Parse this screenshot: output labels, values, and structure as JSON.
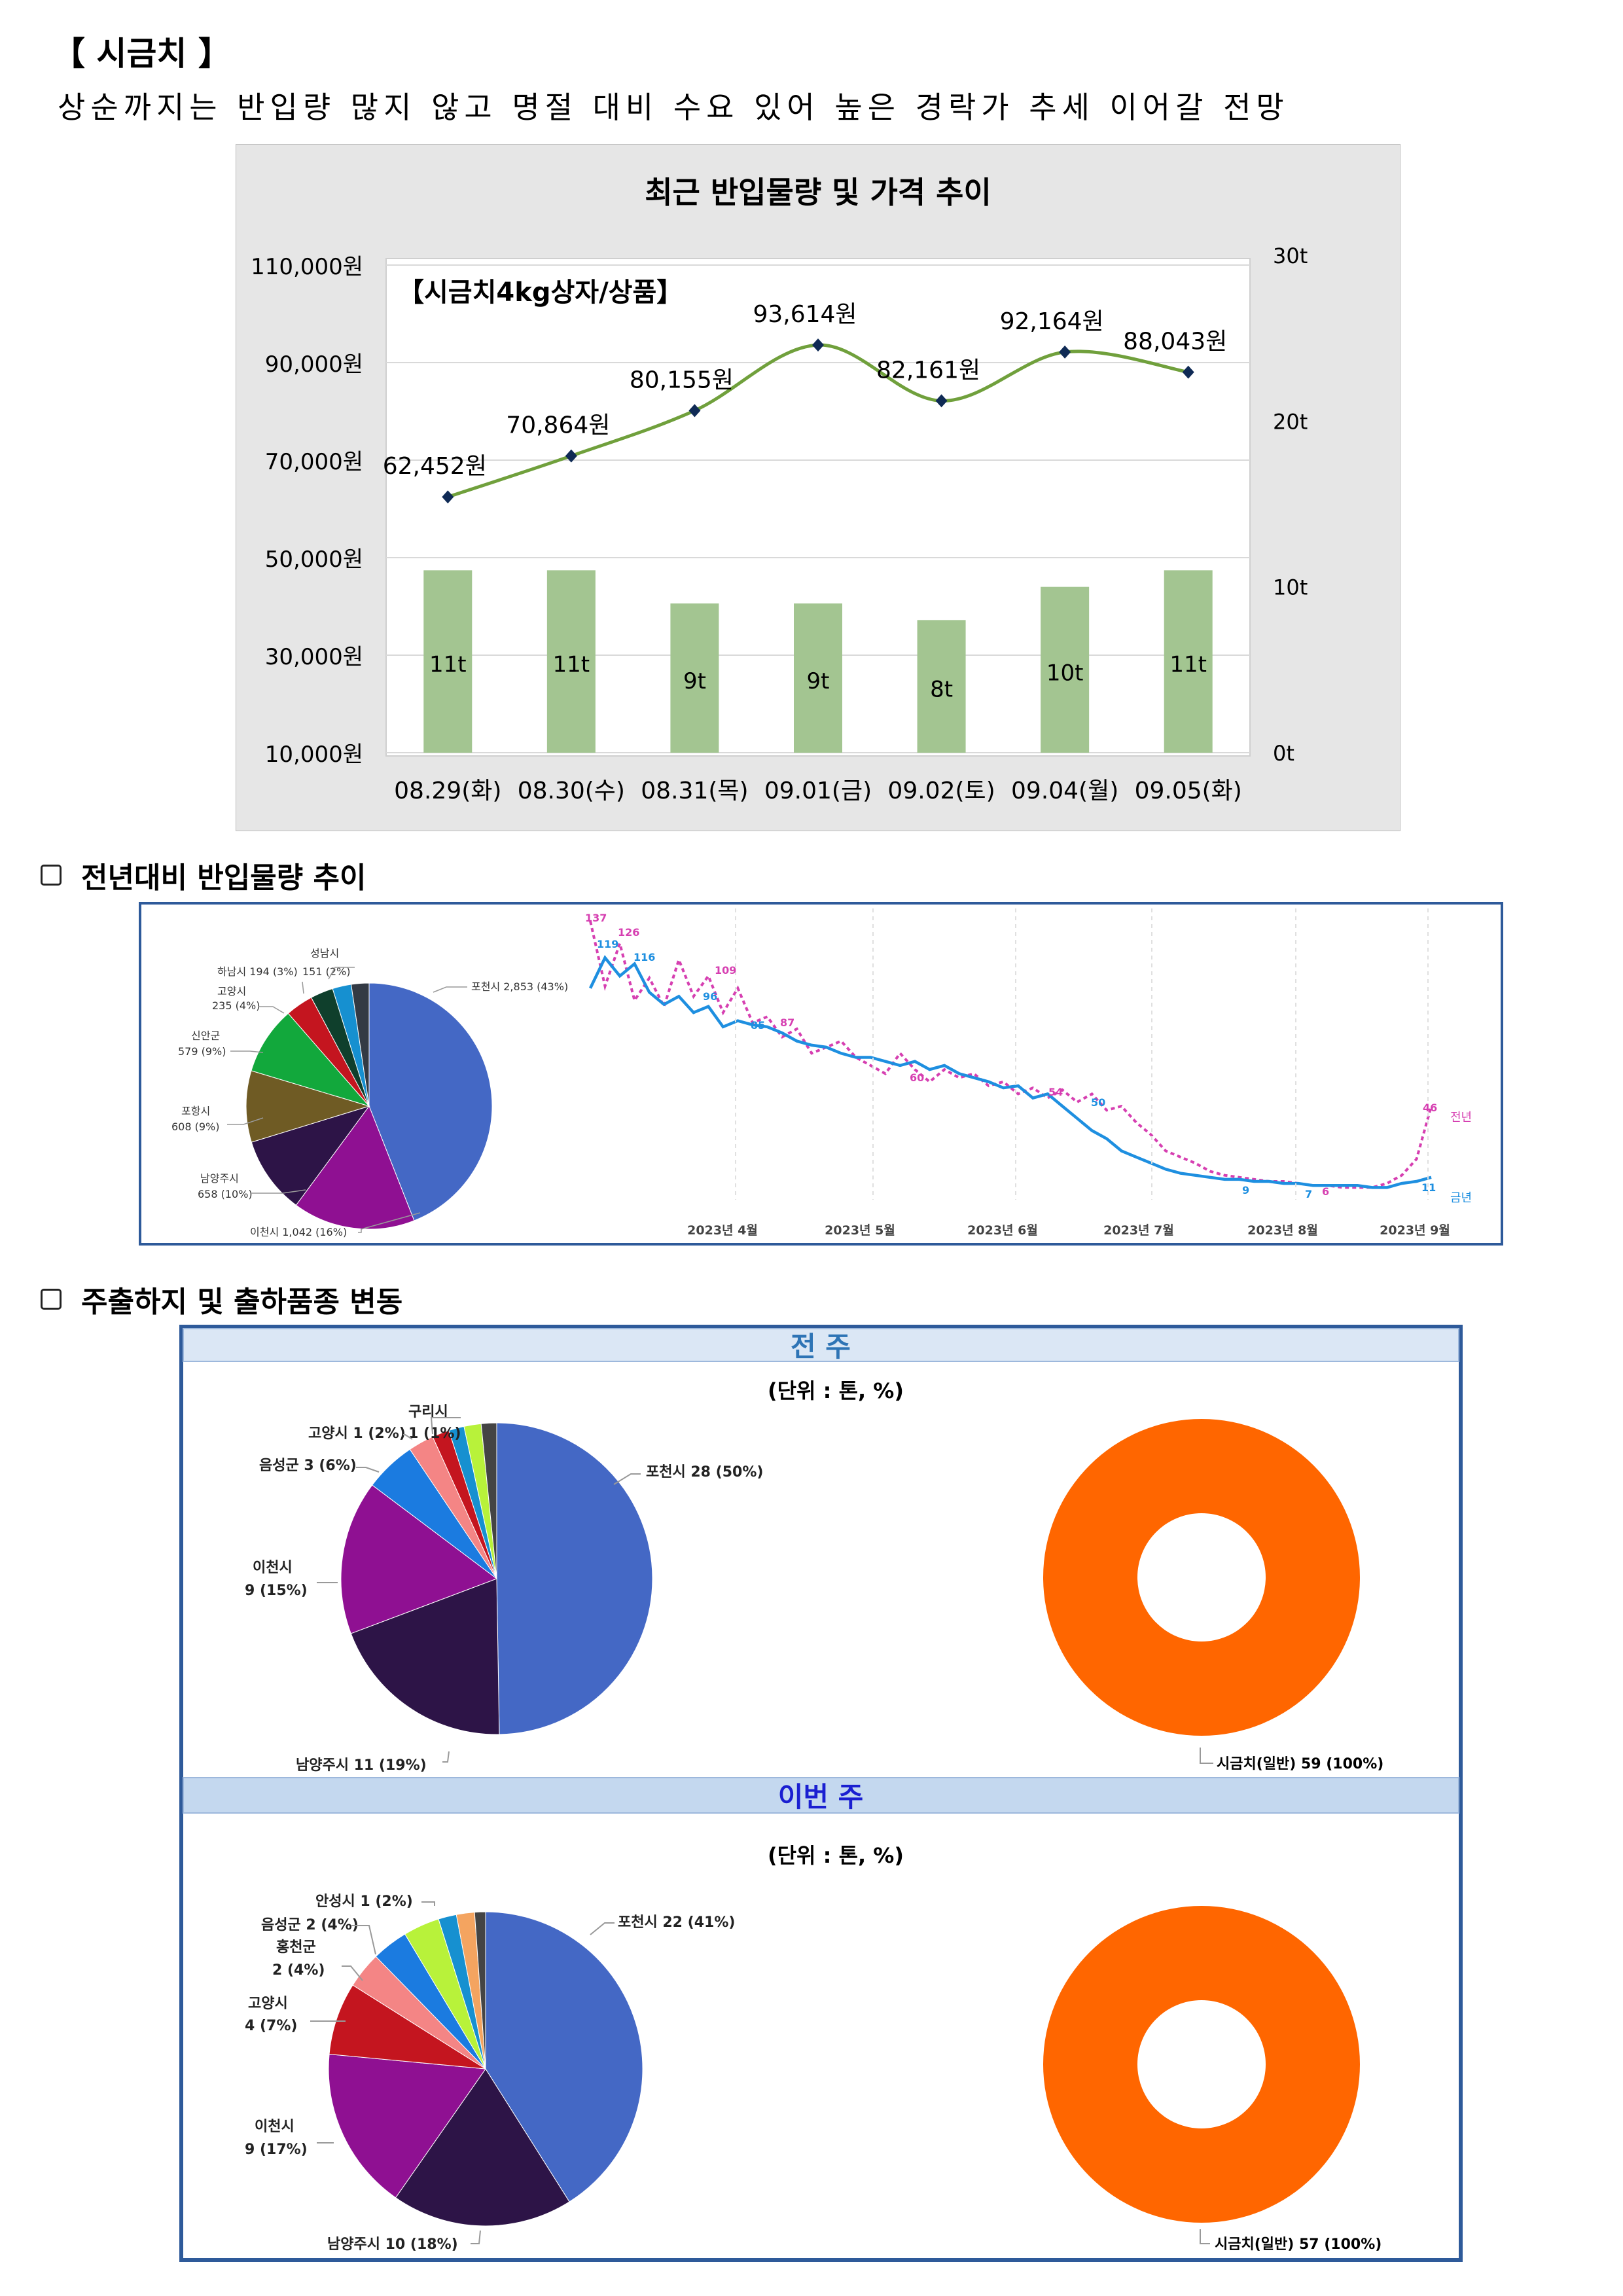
{
  "header": {
    "title": "【 시금치 】",
    "subtitle": "상순까지는 반입량 많지 않고 명절 대비 수요 있어 높은 경락가 추세 이어갈 전망"
  },
  "price_chart": {
    "title": "최근 반입물량 및 가격 추이",
    "inner_label": "【시금치4kg상자/상품】",
    "left_ticks": [
      "110,000원",
      "90,000원",
      "70,000원",
      "50,000원",
      "30,000원",
      "10,000원"
    ],
    "right_ticks": [
      "30t",
      "20t",
      "10t",
      "0t"
    ],
    "line_color": "#70a03c",
    "bar_color": "#a3c591"
  },
  "yoy_section": {
    "heading": "전년대비 반입물량 추이"
  },
  "yoy_pie_labels": [
    "포천시 2,853 (43%)",
    "이천시 1,042 (16%)",
    "남양주시",
    "658 (10%)",
    "포항시",
    "608 (9%)",
    "신안군",
    "579 (9%)",
    "고양시",
    "235 (4%)",
    "하남시 194 (3%)",
    "151 (2%)",
    "성남시"
  ],
  "yoy_line": {
    "month_labels": [
      "2023년 4월",
      "2023년 5월",
      "2023년 6월",
      "2023년 7월",
      "2023년 8월",
      "2023년 9월"
    ],
    "legend_prev": "전년",
    "legend_curr": "금년",
    "prev_color": "#d63fb1",
    "curr_color": "#1e8fe0",
    "callouts_prev": [
      "137",
      "126",
      "109",
      "87",
      "60",
      "54",
      "46",
      "6"
    ],
    "callouts_curr": [
      "119",
      "116",
      "96",
      "85",
      "50",
      "9",
      "7",
      "11"
    ]
  },
  "shipment_section": {
    "heading": "주출하지 및 출하품종 변동"
  },
  "shipment": {
    "prev_week": {
      "header": "전 주",
      "unit": "(단위 : 톤, %)",
      "labels": [
        "포천시 28 (50%)",
        "남양주시 11 (19%)",
        "이천시",
        "9 (15%)",
        "음성군 3 (6%)",
        "고양시 1 (2%)",
        "구리시",
        "1 (1%)"
      ],
      "donut_label": "시금치(일반) 59 (100%)"
    },
    "this_week": {
      "header": "이번 주",
      "unit": "(단위 : 톤, %)",
      "labels": [
        "포천시 22 (41%)",
        "남양주시 10 (18%)",
        "이천시",
        "9 (17%)",
        "고양시",
        "4 (7%)",
        "홍천군",
        "2 (4%)",
        "음성군 2 (4%)",
        "안성시 1 (2%)"
      ],
      "donut_label": "시금치(일반) 57 (100%)"
    },
    "donut_color": "#ff6600"
  },
  "chart_data": [
    {
      "type": "bar+line",
      "title": "최근 반입물량 및 가격 추이",
      "categories": [
        "08.29(화)",
        "08.30(수)",
        "08.31(목)",
        "09.01(금)",
        "09.02(토)",
        "09.04(월)",
        "09.05(화)"
      ],
      "series": [
        {
          "axis": "left",
          "type": "line",
          "values": [
            62452,
            70864,
            80155,
            93614,
            82161,
            92164,
            88043
          ],
          "value_labels": [
            "62,452원",
            "70,864원",
            "80,155원",
            "93,614원",
            "82,161원",
            "92,164원",
            "88,043원"
          ]
        },
        {
          "axis": "right",
          "type": "bar",
          "values": [
            11,
            11,
            9,
            9,
            8,
            10,
            11
          ],
          "value_labels": [
            "11t",
            "11t",
            "9t",
            "9t",
            "8t",
            "10t",
            "11t"
          ]
        }
      ],
      "ylim_left": [
        10000,
        110000
      ],
      "ylim_right": [
        0,
        30
      ]
    },
    {
      "type": "pie",
      "slices": [
        {
          "label": "포천시",
          "value": 2853,
          "pct": 43,
          "color": "#4468c5"
        },
        {
          "label": "이천시",
          "value": 1042,
          "pct": 16,
          "color": "#8f1092"
        },
        {
          "label": "남양주시",
          "value": 658,
          "pct": 10,
          "color": "#2d1447"
        },
        {
          "label": "포항시",
          "value": 608,
          "pct": 9,
          "color": "#6f5b24"
        },
        {
          "label": "신안군",
          "value": 579,
          "pct": 9,
          "color": "#12a83c"
        },
        {
          "label": "고양시",
          "value": 235,
          "pct": 4,
          "color": "#c4151f"
        },
        {
          "label": "하남시",
          "value": 194,
          "pct": 3,
          "color": "#0f3f2c"
        },
        {
          "label": "",
          "value": 160,
          "pct": 3,
          "color": "#1690d0"
        },
        {
          "label": "성남시",
          "value": 151,
          "pct": 2,
          "color": "#333a44"
        }
      ]
    },
    {
      "type": "line",
      "series": [
        {
          "name": "전년",
          "values": [
            137,
            105,
            126,
            98,
            109,
            95,
            118,
            100,
            110,
            92,
            104,
            87,
            90,
            80,
            84,
            72,
            75,
            78,
            70,
            66,
            62,
            72,
            64,
            58,
            64,
            60,
            62,
            56,
            58,
            52,
            55,
            50,
            54,
            48,
            52,
            44,
            46,
            38,
            32,
            24,
            21,
            18,
            14,
            12,
            11,
            10,
            9,
            9,
            8,
            7,
            7,
            6,
            6,
            6,
            8,
            12,
            20,
            46
          ]
        },
        {
          "name": "금년",
          "values": [
            104,
            119,
            110,
            116,
            102,
            96,
            100,
            92,
            95,
            85,
            88,
            86,
            85,
            82,
            78,
            76,
            75,
            72,
            70,
            70,
            68,
            66,
            68,
            64,
            66,
            62,
            60,
            58,
            55,
            56,
            50,
            52,
            46,
            40,
            34,
            30,
            24,
            21,
            18,
            15,
            13,
            12,
            11,
            10,
            10,
            9,
            9,
            8,
            8,
            7,
            7,
            7,
            7,
            6,
            6,
            8,
            9,
            11
          ]
        }
      ]
    },
    {
      "type": "pie",
      "title": "전 주",
      "slices": [
        {
          "label": "포천시",
          "value": 28,
          "pct": 50,
          "color": "#4468c5"
        },
        {
          "label": "남양주시",
          "value": 11,
          "pct": 19,
          "color": "#2d1447"
        },
        {
          "label": "이천시",
          "value": 9,
          "pct": 15,
          "color": "#8f1092"
        },
        {
          "label": "음성군",
          "value": 3,
          "pct": 6,
          "color": "#1b7be0"
        },
        {
          "label": "",
          "value": 1.5,
          "pct": 2.5,
          "color": "#f48585"
        },
        {
          "label": "고양시",
          "value": 1,
          "pct": 2,
          "color": "#c4151f"
        },
        {
          "label": "",
          "value": 0.9,
          "pct": 1.5,
          "color": "#1690d0"
        },
        {
          "label": "구리시",
          "value": 1,
          "pct": 1,
          "color": "#b8f23a"
        },
        {
          "label": "",
          "value": 0.9,
          "pct": 1.5,
          "color": "#444444"
        }
      ]
    },
    {
      "type": "donut",
      "title": "전 주",
      "slices": [
        {
          "label": "시금치(일반)",
          "value": 59,
          "pct": 100,
          "color": "#ff6600"
        }
      ]
    },
    {
      "type": "pie",
      "title": "이번 주",
      "slices": [
        {
          "label": "포천시",
          "value": 22,
          "pct": 41,
          "color": "#4468c5"
        },
        {
          "label": "남양주시",
          "value": 10,
          "pct": 18,
          "color": "#2d1447"
        },
        {
          "label": "이천시",
          "value": 9,
          "pct": 17,
          "color": "#8f1092"
        },
        {
          "label": "고양시",
          "value": 4,
          "pct": 7,
          "color": "#c4151f"
        },
        {
          "label": "홍천군",
          "value": 2,
          "pct": 4,
          "color": "#f48585"
        },
        {
          "label": "음성군",
          "value": 2,
          "pct": 4,
          "color": "#1b7be0"
        },
        {
          "label": "",
          "value": 2,
          "pct": 4,
          "color": "#b8f23a"
        },
        {
          "label": "안성시",
          "value": 1,
          "pct": 2,
          "color": "#1690d0"
        },
        {
          "label": "",
          "value": 1,
          "pct": 2,
          "color": "#f4a460"
        },
        {
          "label": "",
          "value": 0.6,
          "pct": 1,
          "color": "#444444"
        }
      ]
    },
    {
      "type": "donut",
      "title": "이번 주",
      "slices": [
        {
          "label": "시금치(일반)",
          "value": 57,
          "pct": 100,
          "color": "#ff6600"
        }
      ]
    }
  ]
}
